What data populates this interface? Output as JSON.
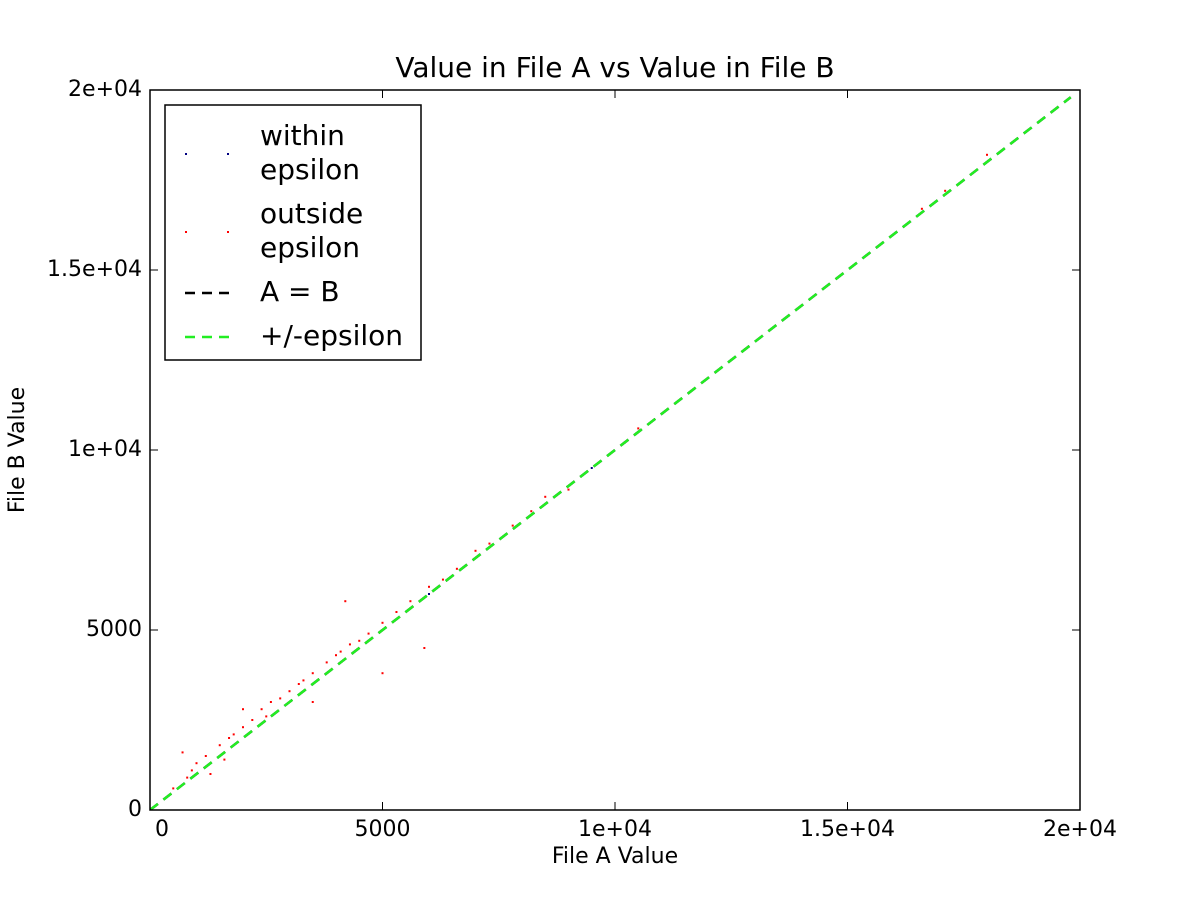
{
  "chart_data": {
    "type": "scatter",
    "title": "Value in File A vs Value in File B",
    "x_label": "File A Value",
    "y_label": "File B Value",
    "xlim": [
      0,
      20000
    ],
    "ylim": [
      0,
      20000
    ],
    "xticks": [
      0,
      5000,
      {
        "value": 10000,
        "label": "1e+04"
      },
      {
        "value": 15000,
        "label": "1.5e+04"
      },
      {
        "value": 20000,
        "label": "2e+04"
      }
    ],
    "yticks": [
      0,
      5000,
      {
        "value": 10000,
        "label": "1e+04"
      },
      {
        "value": 15000,
        "label": "1.5e+04"
      },
      {
        "value": 20000,
        "label": "2e+04"
      }
    ],
    "legend": "upper left",
    "series": [
      {
        "name": "within epsilon",
        "color": "#000080",
        "style": "points",
        "x": [
          3000,
          6000,
          9500
        ],
        "values": [
          3000,
          6000,
          9500
        ]
      },
      {
        "name": "outside epsilon",
        "color": "#ff0000",
        "style": "points",
        "x": [
          500,
          800,
          1000,
          1200,
          1500,
          1600,
          1800,
          2000,
          2200,
          2400,
          2600,
          2800,
          3000,
          3200,
          3500,
          3800,
          4000,
          4300,
          4500,
          4700,
          5000,
          5300,
          5600,
          6000,
          6300,
          6600,
          7000,
          7300,
          7800,
          8200,
          8500,
          9000,
          10200,
          10500,
          12800,
          16600,
          17100,
          18000,
          4200,
          5900,
          5000,
          1300,
          700,
          3500,
          2000,
          900,
          1700,
          2500,
          3300,
          4100
        ],
        "values": [
          600,
          900,
          1300,
          1500,
          1800,
          1400,
          2100,
          2300,
          2500,
          2800,
          3000,
          3100,
          3300,
          3500,
          3800,
          4100,
          4300,
          4600,
          4700,
          4900,
          5200,
          5500,
          5800,
          6200,
          6400,
          6700,
          7200,
          7400,
          7900,
          8300,
          8700,
          8900,
          10200,
          10600,
          12800,
          16700,
          17200,
          18200,
          5800,
          4500,
          3800,
          1000,
          1600,
          3000,
          2800,
          1100,
          2000,
          2600,
          3600,
          4400
        ]
      },
      {
        "name": "A = B",
        "color": "#000000",
        "style": "dashed",
        "x": [
          0,
          19800
        ],
        "values": [
          0,
          19800
        ]
      },
      {
        "name": "+/-epsilon",
        "color": "#22ee22",
        "style": "dashed",
        "x": [
          0,
          19800
        ],
        "values": [
          0,
          19800
        ]
      }
    ]
  }
}
